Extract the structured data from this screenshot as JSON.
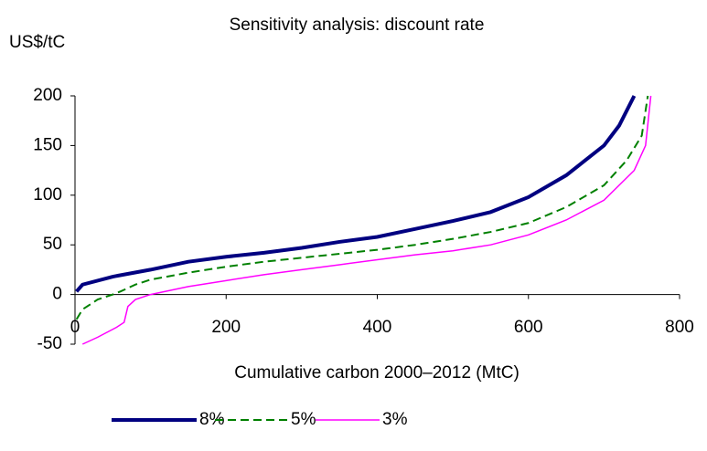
{
  "chart_data": {
    "type": "line",
    "title": "Sensitivity analysis: discount rate",
    "y_label": "US$/tC",
    "x_label": "Cumulative carbon 2000–2012 (MtC)",
    "xlim": [
      0,
      800
    ],
    "xticks": [
      0,
      200,
      400,
      600,
      800
    ],
    "ylim": [
      -50,
      200
    ],
    "yticks": [
      -50,
      0,
      50,
      100,
      150,
      200
    ],
    "grid": false,
    "legend": "bottom",
    "series": [
      {
        "name": "8%",
        "color": "#000080",
        "x": [
          2,
          10,
          50,
          100,
          150,
          200,
          250,
          300,
          350,
          400,
          450,
          500,
          550,
          600,
          650,
          700,
          720,
          740
        ],
        "values": [
          3,
          10,
          18,
          25,
          33,
          38,
          42,
          47,
          53,
          58,
          66,
          74,
          83,
          98,
          120,
          150,
          170,
          200
        ]
      },
      {
        "name": "5%",
        "color": "#008000",
        "x": [
          2,
          10,
          30,
          50,
          60,
          80,
          100,
          150,
          200,
          250,
          300,
          350,
          400,
          450,
          500,
          550,
          600,
          650,
          700,
          730,
          750,
          758
        ],
        "values": [
          -25,
          -15,
          -5,
          0,
          3,
          10,
          15,
          22,
          28,
          33,
          37,
          41,
          45,
          50,
          56,
          63,
          72,
          88,
          110,
          135,
          160,
          200
        ]
      },
      {
        "name": "3%",
        "color": "#ff00ff",
        "x": [
          10,
          30,
          55,
          65,
          70,
          80,
          100,
          150,
          200,
          250,
          300,
          350,
          400,
          450,
          500,
          550,
          600,
          650,
          700,
          740,
          755,
          762
        ],
        "values": [
          -50,
          -43,
          -33,
          -28,
          -12,
          -5,
          0,
          8,
          14,
          20,
          25,
          30,
          35,
          40,
          44,
          50,
          60,
          75,
          95,
          125,
          150,
          200
        ]
      }
    ]
  }
}
